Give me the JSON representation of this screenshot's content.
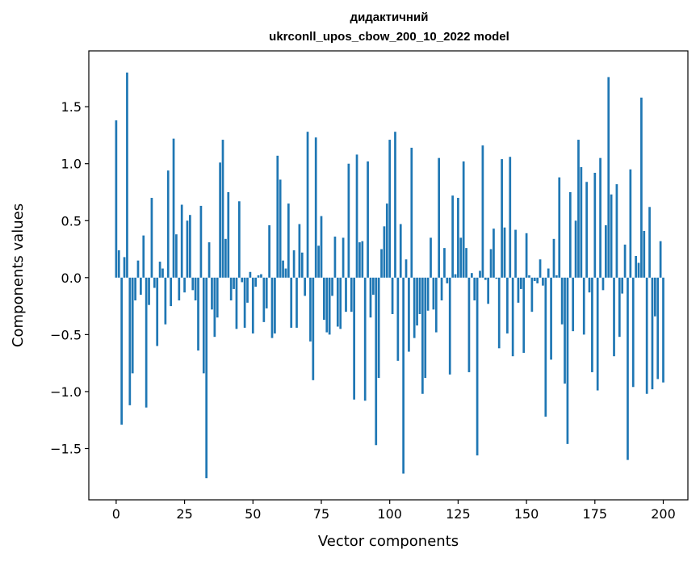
{
  "chart_data": {
    "type": "bar",
    "title": "дидактичний",
    "subtitle": "ukrconll_upos_cbow_200_10_2022 model",
    "xlabel": "Vector components",
    "ylabel": "Components values",
    "xlim": [
      -10,
      209
    ],
    "ylim": [
      -1.95,
      1.99
    ],
    "xticks": [
      0,
      25,
      50,
      75,
      100,
      125,
      150,
      175,
      200
    ],
    "yticks": [
      -1.5,
      -1.0,
      -0.5,
      0.0,
      0.5,
      1.0,
      1.5
    ],
    "xtick_labels": [
      "0",
      "25",
      "50",
      "75",
      "100",
      "125",
      "150",
      "175",
      "200"
    ],
    "ytick_labels": [
      "−1.5",
      "−1.0",
      "−0.5",
      "0.0",
      "0.5",
      "1.0",
      "1.5"
    ],
    "color": "#1f77b4",
    "values": [
      1.38,
      0.24,
      -1.29,
      0.18,
      1.8,
      -1.12,
      -0.84,
      -0.2,
      0.15,
      -0.15,
      0.37,
      -1.14,
      -0.24,
      0.7,
      -0.09,
      -0.6,
      0.14,
      0.08,
      -0.41,
      0.94,
      -0.25,
      1.22,
      0.38,
      -0.2,
      0.64,
      -0.13,
      0.5,
      0.55,
      -0.11,
      -0.2,
      -0.64,
      0.63,
      -0.84,
      -1.76,
      0.31,
      -0.28,
      -0.52,
      -0.35,
      1.01,
      1.21,
      0.34,
      0.75,
      -0.2,
      -0.1,
      -0.45,
      0.67,
      -0.04,
      -0.44,
      -0.22,
      0.05,
      -0.49,
      -0.08,
      0.02,
      0.03,
      -0.39,
      -0.27,
      0.46,
      -0.53,
      -0.49,
      1.07,
      0.86,
      0.15,
      0.08,
      0.65,
      -0.44,
      0.24,
      -0.44,
      0.47,
      0.22,
      -0.16,
      1.28,
      -0.56,
      -0.9,
      1.23,
      0.28,
      0.54,
      -0.37,
      -0.48,
      -0.5,
      -0.16,
      0.36,
      -0.43,
      -0.45,
      0.35,
      -0.3,
      1.0,
      -0.3,
      -1.07,
      1.08,
      0.31,
      0.32,
      -1.08,
      1.02,
      -0.35,
      -0.15,
      -1.47,
      -0.88,
      0.25,
      0.45,
      0.65,
      1.21,
      -0.32,
      1.28,
      -0.73,
      0.47,
      -1.72,
      0.16,
      -0.65,
      1.14,
      -0.53,
      -0.42,
      -0.32,
      -1.02,
      -0.88,
      -0.29,
      0.35,
      -0.28,
      -0.48,
      1.05,
      -0.2,
      0.26,
      -0.05,
      -0.85,
      0.72,
      0.03,
      0.7,
      0.35,
      1.02,
      0.26,
      -0.83,
      0.04,
      -0.2,
      -1.56,
      0.06,
      1.16,
      -0.02,
      -0.23,
      0.25,
      0.43,
      -0.01,
      -0.62,
      1.04,
      0.44,
      -0.49,
      1.06,
      -0.69,
      0.42,
      -0.22,
      -0.1,
      -0.66,
      0.39,
      0.02,
      -0.3,
      -0.03,
      -0.05,
      0.16,
      -0.07,
      -1.22,
      0.08,
      -0.72,
      0.34,
      0.02,
      0.88,
      -0.41,
      -0.93,
      -1.46,
      0.75,
      -0.47,
      0.5,
      1.21,
      0.97,
      -0.5,
      0.84,
      -0.13,
      -0.83,
      0.92,
      -0.99,
      1.05,
      -0.11,
      0.46,
      1.76,
      0.73,
      -0.69,
      0.82,
      -0.52,
      -0.14,
      0.29,
      -1.6,
      0.95,
      -0.96,
      0.19,
      0.13,
      1.58,
      0.41,
      -1.02,
      0.62,
      -0.98,
      -0.34,
      -0.89,
      0.32,
      -0.92
    ]
  }
}
